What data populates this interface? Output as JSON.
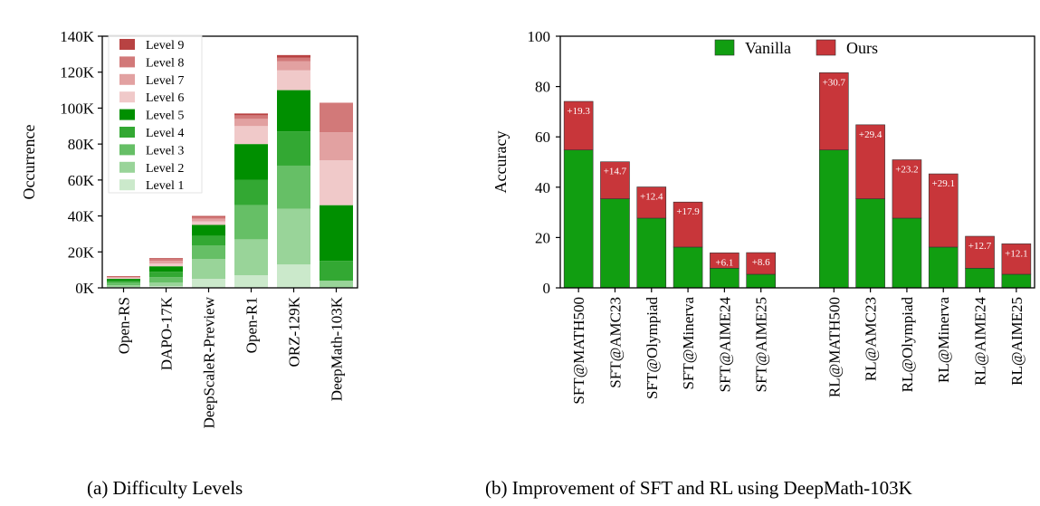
{
  "captions": {
    "a": "(a) Difficulty Levels",
    "b": "(b) Improvement of SFT and RL using DeepMath-103K"
  },
  "colors": {
    "levels": [
      "#cbe9cb",
      "#99d499",
      "#66bf66",
      "#33a833",
      "#008f00",
      "#f0c9c9",
      "#e2a1a1",
      "#d27979",
      "#b84242"
    ],
    "vanilla": "#119e11",
    "ours": "#c8363a"
  },
  "chart_data": [
    {
      "type": "bar",
      "stacked": true,
      "title": "",
      "xlabel": "",
      "ylabel": "Occurrence",
      "ylim": [
        0,
        140000
      ],
      "yticks": [
        0,
        20000,
        40000,
        60000,
        80000,
        100000,
        120000,
        140000
      ],
      "ytick_labels": [
        "0K",
        "20K",
        "40K",
        "60K",
        "80K",
        "100K",
        "120K",
        "140K"
      ],
      "categories": [
        "Open-RS",
        "DAPO-17K",
        "DeepScaleR-Preview",
        "Open-R1",
        "ORZ-129K",
        "DeepMath-103K"
      ],
      "legend_position": "top-left",
      "legend_order": [
        "Level 9",
        "Level 8",
        "Level 7",
        "Level 6",
        "Level 5",
        "Level 4",
        "Level 3",
        "Level 2",
        "Level 1"
      ],
      "series": [
        {
          "name": "Level 1",
          "values": [
            500,
            1000,
            5000,
            7000,
            13000,
            0
          ]
        },
        {
          "name": "Level 2",
          "values": [
            1000,
            2000,
            11000,
            20000,
            31000,
            4000
          ]
        },
        {
          "name": "Level 3",
          "values": [
            1500,
            3000,
            7500,
            19000,
            24000,
            0
          ]
        },
        {
          "name": "Level 4",
          "values": [
            1000,
            3000,
            5500,
            14000,
            19000,
            11000
          ]
        },
        {
          "name": "Level 5",
          "values": [
            1000,
            3000,
            6000,
            20000,
            23000,
            31000
          ]
        },
        {
          "name": "Level 6",
          "values": [
            500,
            1500,
            2000,
            10000,
            11000,
            25000
          ]
        },
        {
          "name": "Level 7",
          "values": [
            500,
            1500,
            1500,
            4000,
            5000,
            15500
          ]
        },
        {
          "name": "Level 8",
          "values": [
            300,
            1000,
            1000,
            2000,
            2000,
            16500
          ]
        },
        {
          "name": "Level 9",
          "values": [
            200,
            500,
            500,
            1000,
            1500,
            0
          ]
        }
      ]
    },
    {
      "type": "bar",
      "stacked": true,
      "title": "",
      "xlabel": "",
      "ylabel": "Accuracy",
      "ylim": [
        0,
        100
      ],
      "yticks": [
        0,
        20,
        40,
        60,
        80,
        100
      ],
      "legend_position": "top-center",
      "categories": [
        "SFT@MATH500",
        "SFT@AMC23",
        "SFT@Olympiad",
        "SFT@Minerva",
        "SFT@AIME24",
        "SFT@AIME25",
        "RL@MATH500",
        "RL@AMC23",
        "RL@Olympiad",
        "RL@Minerva",
        "RL@AIME24",
        "RL@AIME25"
      ],
      "series": [
        {
          "name": "Vanilla",
          "values": [
            54.8,
            35.4,
            27.7,
            16.2,
            7.8,
            5.4,
            54.8,
            35.4,
            27.7,
            16.2,
            7.8,
            5.4
          ]
        },
        {
          "name": "Ours",
          "values": [
            19.3,
            14.7,
            12.4,
            17.9,
            6.1,
            8.6,
            30.7,
            29.4,
            23.2,
            29.1,
            12.7,
            12.1
          ]
        }
      ],
      "annotations": [
        "+19.3",
        "+14.7",
        "+12.4",
        "+17.9",
        "+6.1",
        "+8.6",
        "+30.7",
        "+29.4",
        "+23.2",
        "+29.1",
        "+12.7",
        "+12.1"
      ]
    }
  ]
}
